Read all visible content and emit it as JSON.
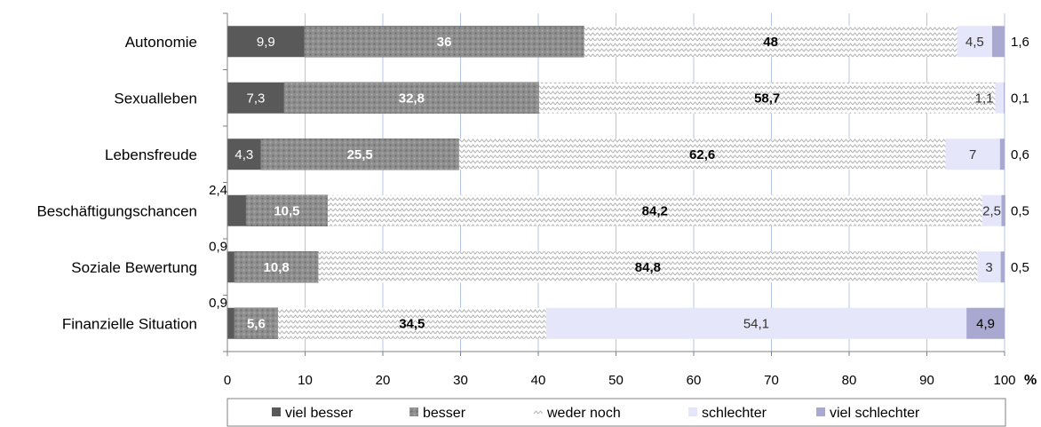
{
  "chart_data": {
    "type": "bar",
    "orientation": "horizontal",
    "stacked": true,
    "unit": "%",
    "xlim": [
      0,
      100
    ],
    "x_ticks": [
      0,
      10,
      20,
      30,
      40,
      50,
      60,
      70,
      80,
      90,
      100
    ],
    "grid": true,
    "legend_placement": "bottom",
    "categories": [
      "Autonomie",
      "Sexualleben",
      "Lebensfreude",
      "Beschäftigungschancen",
      "Soziale Bewertung",
      "Finanzielle Situation"
    ],
    "series": [
      {
        "name": "viel besser",
        "values": [
          9.9,
          7.3,
          4.3,
          2.4,
          0.9,
          0.9
        ],
        "labels": [
          "9,9",
          "7,3",
          "4,3",
          "2,4",
          "0,9",
          "0,9"
        ],
        "color": "#595959"
      },
      {
        "name": "besser",
        "values": [
          36,
          32.8,
          25.5,
          10.5,
          10.8,
          5.6
        ],
        "labels": [
          "36",
          "32,8",
          "25,5",
          "10,5",
          "10,8",
          "5,6"
        ],
        "color": "#8c8c8c"
      },
      {
        "name": "weder noch",
        "values": [
          48,
          58.7,
          62.6,
          84.2,
          84.8,
          34.5
        ],
        "labels": [
          "48",
          "58,7",
          "62,6",
          "84,2",
          "84,8",
          "34,5"
        ],
        "color": "#c8c8c8"
      },
      {
        "name": "schlechter",
        "values": [
          4.5,
          1.1,
          7,
          2.5,
          3,
          54.1
        ],
        "labels": [
          "4,5",
          "1,1",
          "7",
          "2,5",
          "3",
          "54,1"
        ],
        "color": "#e6e6fa"
      },
      {
        "name": "viel schlechter",
        "values": [
          1.6,
          0.1,
          0.6,
          0.5,
          0.5,
          4.9
        ],
        "labels": [
          "1,6",
          "0,1",
          "0,6",
          "0,5",
          "0,5",
          "4,9"
        ],
        "color": "#a8a8d0"
      }
    ]
  }
}
